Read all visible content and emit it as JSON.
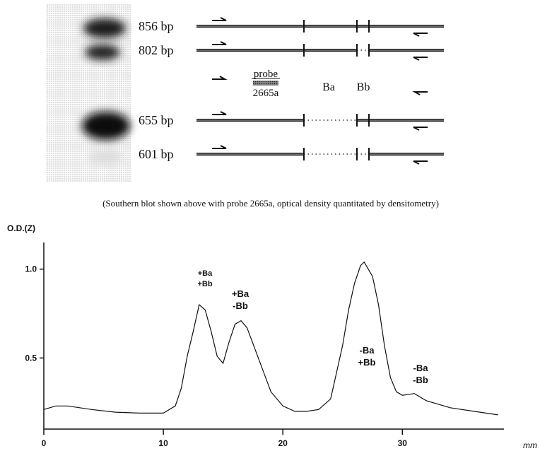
{
  "blot": {
    "bands": [
      "856 bp",
      "802 bp",
      "655 bp",
      "601 bp"
    ],
    "probe": "probe",
    "probe_name": "2665a",
    "sites": [
      "Ba",
      "Bb"
    ]
  },
  "caption": "(Southern blot shown above with probe 2665a, optical density quantitated by densitometry)",
  "chart_data": {
    "type": "line",
    "y_label": "O.D.(Z)",
    "x_label": "mm",
    "color": "#111111",
    "x": [
      0,
      1,
      2,
      4,
      6,
      8,
      10,
      11,
      11.5,
      12,
      12.5,
      13,
      13.5,
      14,
      14.5,
      15,
      15.5,
      16,
      16.5,
      17,
      18,
      19,
      20,
      21,
      22,
      23,
      24,
      25,
      25.5,
      26,
      26.5,
      26.8,
      27.5,
      28,
      28.5,
      29,
      29.5,
      30,
      31,
      32,
      34,
      36,
      38
    ],
    "values": [
      0.21,
      0.23,
      0.23,
      0.21,
      0.195,
      0.19,
      0.19,
      0.23,
      0.33,
      0.51,
      0.65,
      0.8,
      0.77,
      0.65,
      0.51,
      0.47,
      0.59,
      0.69,
      0.71,
      0.67,
      0.49,
      0.31,
      0.23,
      0.2,
      0.2,
      0.21,
      0.27,
      0.57,
      0.77,
      0.92,
      1.02,
      1.04,
      0.96,
      0.8,
      0.57,
      0.39,
      0.31,
      0.29,
      0.3,
      0.26,
      0.22,
      0.2,
      0.18
    ],
    "xlim": [
      0,
      38.5
    ],
    "ylim": [
      0.1,
      1.15
    ],
    "xticks": [
      0,
      10,
      20,
      30
    ],
    "yticks": [
      0.5,
      {
        "value": 1.0,
        "label": "1.0"
      }
    ],
    "annotations": [
      [
        "+Ba",
        "+Bb"
      ],
      [
        "+Ba",
        "-Bb"
      ],
      [
        "-Ba",
        "+Bb"
      ],
      [
        "-Ba",
        "-Bb"
      ]
    ]
  }
}
